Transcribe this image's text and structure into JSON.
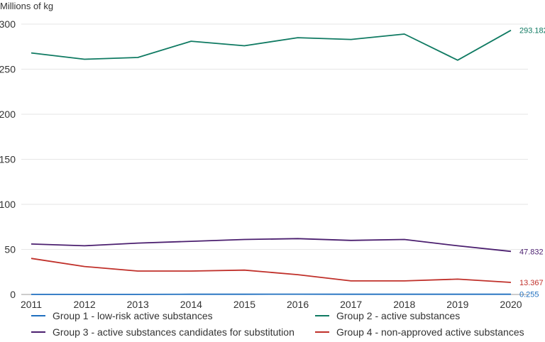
{
  "chart_data": {
    "type": "line",
    "title": "",
    "ylabel": "Millions of kg",
    "xlabel": "",
    "ylim": [
      0,
      300
    ],
    "yticks": [
      0,
      50,
      100,
      150,
      200,
      250,
      300
    ],
    "grid": true,
    "legend_position": "bottom",
    "categories": [
      "2011",
      "2012",
      "2013",
      "2014",
      "2015",
      "2016",
      "2017",
      "2018",
      "2019",
      "2020"
    ],
    "series": [
      {
        "name": "Group 1 - low-risk active substances",
        "color": "#1f6fbf",
        "values": [
          0.1,
          0.1,
          0.1,
          0.2,
          0.2,
          0.3,
          0.2,
          0.2,
          0.2,
          0.255
        ],
        "end_label": "0.255"
      },
      {
        "name": "Group 2 - active substances",
        "color": "#0f7a62",
        "values": [
          268,
          261,
          263,
          281,
          276,
          285,
          283,
          289,
          260,
          293.182
        ],
        "end_label": "293.182"
      },
      {
        "name": "Group 3 - active substances candidates for substitution",
        "color": "#4b1f6f",
        "values": [
          56,
          54,
          57,
          59,
          61,
          62,
          60,
          61,
          54,
          47.832
        ],
        "end_label": "47.832"
      },
      {
        "name": "Group 4 - non-approved active substances",
        "color": "#c0302a",
        "values": [
          40,
          31,
          26,
          26,
          27,
          22,
          15,
          15,
          17,
          13.367
        ],
        "end_label": "13.367"
      }
    ]
  }
}
